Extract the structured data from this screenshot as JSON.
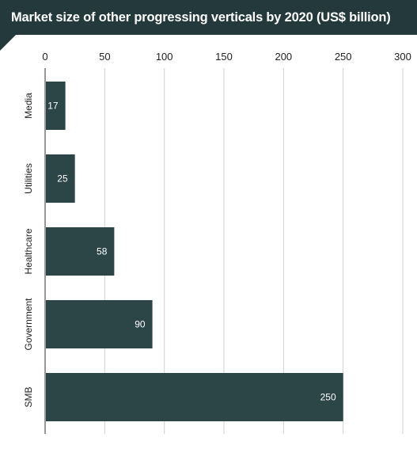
{
  "colors": {
    "banner": "#23393b",
    "bar": "#2c4547",
    "grid": "#d0d0d0",
    "axis": "#333333",
    "text": "#222222",
    "bar_label": "#ffffff"
  },
  "chart_data": {
    "type": "bar",
    "orientation": "horizontal",
    "title": "Market size of other progressing verticals by 2020 (US$ billion)",
    "categories": [
      "Media",
      "Utilities",
      "Healthcare",
      "Government",
      "SMB"
    ],
    "values": [
      17,
      25,
      58,
      90,
      250
    ],
    "value_labels": [
      "17",
      "25",
      "58",
      "90",
      "250"
    ],
    "xlim": [
      0,
      300
    ],
    "xticks": [
      "0",
      "50",
      "100",
      "150",
      "200",
      "250",
      "300"
    ],
    "tick_values": [
      0,
      50,
      100,
      150,
      200,
      250,
      300
    ],
    "x_axis_position": "top",
    "grid": true,
    "legend": "none"
  }
}
